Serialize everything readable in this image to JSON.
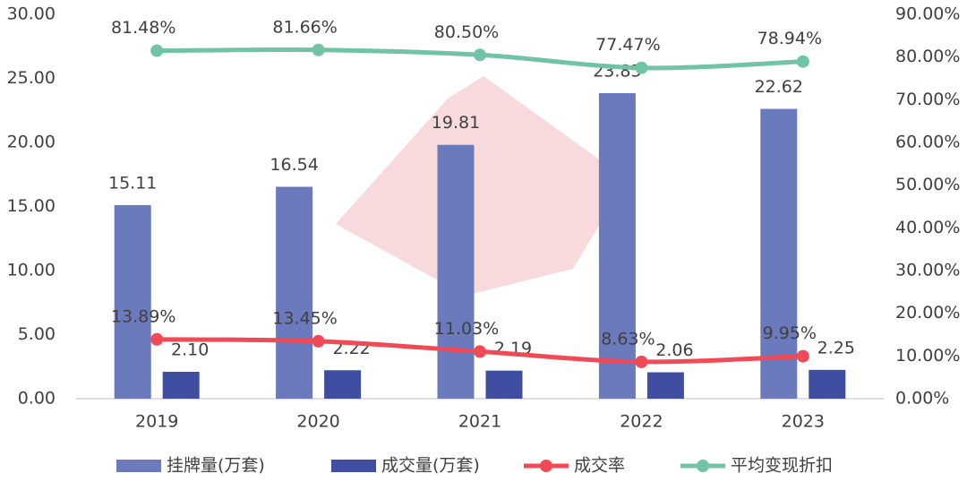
{
  "chart_data": {
    "type": "bar-line",
    "categories": [
      "2019",
      "2020",
      "2021",
      "2022",
      "2023"
    ],
    "series": [
      {
        "name": "挂牌量(万套)",
        "type": "bar",
        "color": "#6b79bd",
        "values": [
          15.11,
          16.54,
          19.81,
          23.85,
          22.62
        ],
        "value_labels": [
          "15.11",
          "16.54",
          "19.81",
          "23.85",
          "22.62"
        ]
      },
      {
        "name": "成交量(万套)",
        "type": "bar",
        "color": "#3f4ea0",
        "values": [
          2.1,
          2.22,
          2.19,
          2.06,
          2.25
        ],
        "value_labels": [
          "2.10",
          "2.22",
          "2.19",
          "2.06",
          "2.25"
        ]
      },
      {
        "name": "成交率",
        "type": "line",
        "axis": "y2",
        "color": "#ef4a55",
        "values": [
          13.89,
          13.45,
          11.03,
          8.63,
          9.95
        ],
        "value_labels": [
          "13.89%",
          "13.45%",
          "11.03%",
          "8.63%",
          "9.95%"
        ]
      },
      {
        "name": "平均变现折扣",
        "type": "line",
        "axis": "y2",
        "color": "#70c4a3",
        "values": [
          81.48,
          81.66,
          80.5,
          77.47,
          78.94
        ],
        "value_labels": [
          "81.48%",
          "81.66%",
          "80.50%",
          "77.47%",
          "78.94%"
        ]
      }
    ],
    "ylim": [
      0,
      30
    ],
    "yticks": [
      {
        "value": 0,
        "label": "0.00"
      },
      {
        "value": 5,
        "label": "5.00"
      },
      {
        "value": 10,
        "label": "10.00"
      },
      {
        "value": 15,
        "label": "15.00"
      },
      {
        "value": 20,
        "label": "20.00"
      },
      {
        "value": 25,
        "label": "25.00"
      },
      {
        "value": 30,
        "label": "30.00"
      }
    ],
    "y2lim": [
      0,
      90
    ],
    "y2ticks": [
      {
        "value": 0,
        "label": "0.00%"
      },
      {
        "value": 10,
        "label": "10.00%"
      },
      {
        "value": 20,
        "label": "20.00%"
      },
      {
        "value": 30,
        "label": "30.00%"
      },
      {
        "value": 40,
        "label": "40.00%"
      },
      {
        "value": 50,
        "label": "50.00%"
      },
      {
        "value": 60,
        "label": "60.00%"
      },
      {
        "value": 70,
        "label": "70.00%"
      },
      {
        "value": 80,
        "label": "80.00%"
      },
      {
        "value": 90,
        "label": "90.00%"
      }
    ],
    "grid": false,
    "legend": "bottom"
  }
}
